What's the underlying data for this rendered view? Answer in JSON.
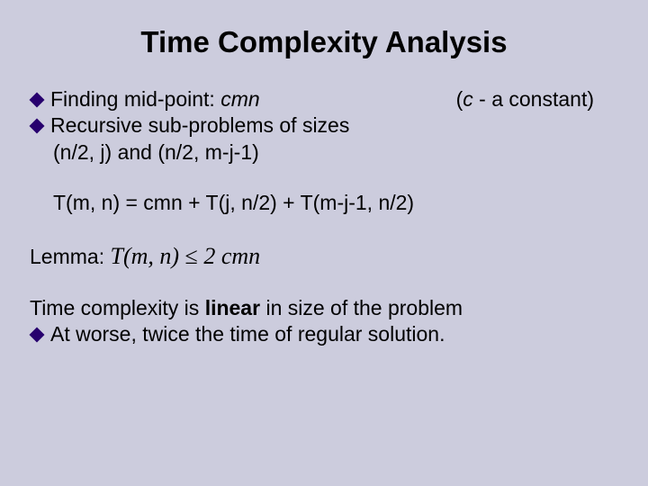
{
  "background_color": "#ccccdd",
  "text_color": "#000000",
  "bullet_color": "#27006e",
  "title": {
    "text": "Time Complexity Analysis",
    "fontsize": 33,
    "weight": "bold",
    "align": "center"
  },
  "body_fontsize": 23,
  "lines": {
    "b1": {
      "prefix": "Finding mid-point: ",
      "emph": "cmn",
      "note_open": "(",
      "note_var": "c",
      "note_rest": " - a constant)"
    },
    "b2": {
      "text": "Recursive sub-problems of sizes",
      "cont": "(n/2, j) and (n/2, m-j-1)"
    },
    "eq": "T(m, n) = cmn + T(j, n/2) + T(m-j-1, n/2)",
    "lemma": {
      "label": "Lemma: ",
      "lhs": "T(m, n) ",
      "op": "≤",
      "rhs": " 2 cmn"
    },
    "concl": {
      "pre": "Time complexity is ",
      "strong": "linear",
      "post": " in size of the problem"
    },
    "b3": "At worse, twice the time of regular solution."
  }
}
